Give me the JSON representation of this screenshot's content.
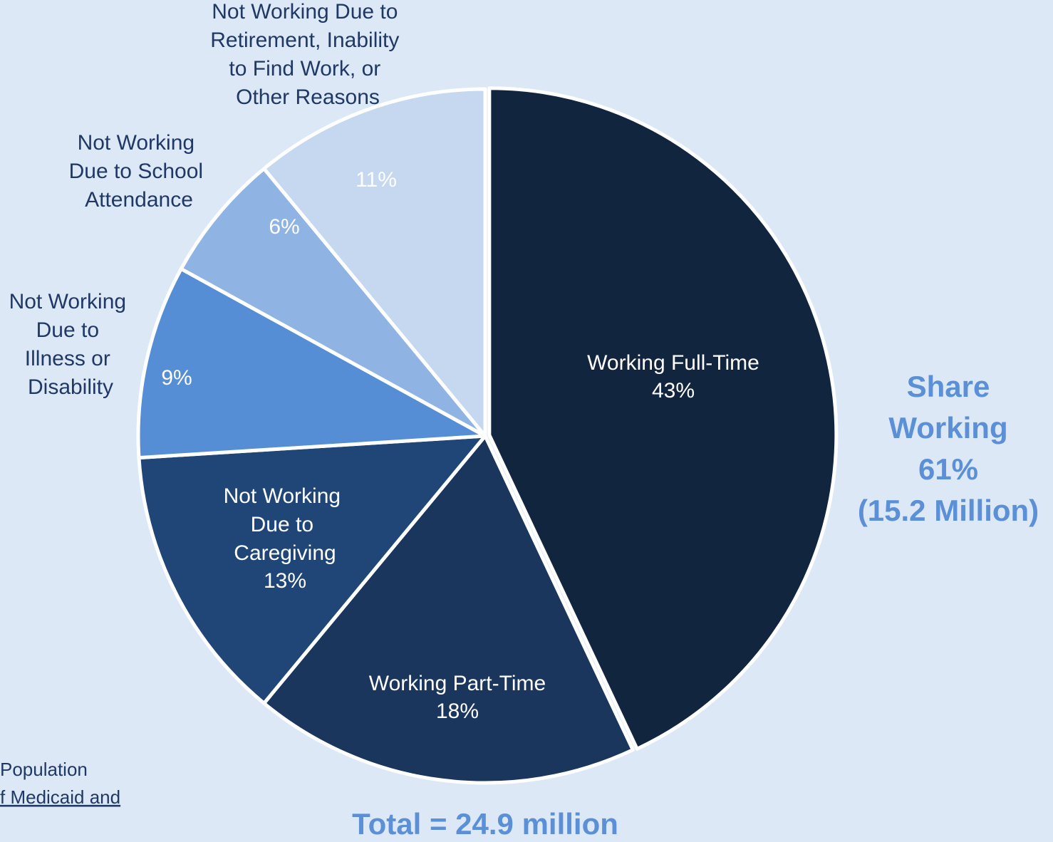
{
  "chart_data": {
    "type": "pie",
    "categories": [
      "Working Full-Time",
      "Working Part-Time",
      "Not Working Due to Caregiving",
      "Not Working Due to Illness or Disability",
      "Not Working Due to School Attendance",
      "Not Working Due to Retirement, Inability to Find Work, or Other Reasons"
    ],
    "values": [
      43,
      18,
      13,
      9,
      6,
      11
    ],
    "value_labels": [
      "43%",
      "18%",
      "13%",
      "9%",
      "6%",
      "11%"
    ],
    "colors": [
      "#12253f",
      "#1a365d",
      "#1f4677",
      "#568ed6",
      "#8fb3e3",
      "#c5d8f0"
    ],
    "annotations": {
      "share_working": [
        "Share",
        "Working",
        "61%",
        "(15.2 Million)"
      ],
      "total": "Total = 24.9 million"
    },
    "source_lines": [
      "Population",
      "f Medicaid and"
    ]
  }
}
